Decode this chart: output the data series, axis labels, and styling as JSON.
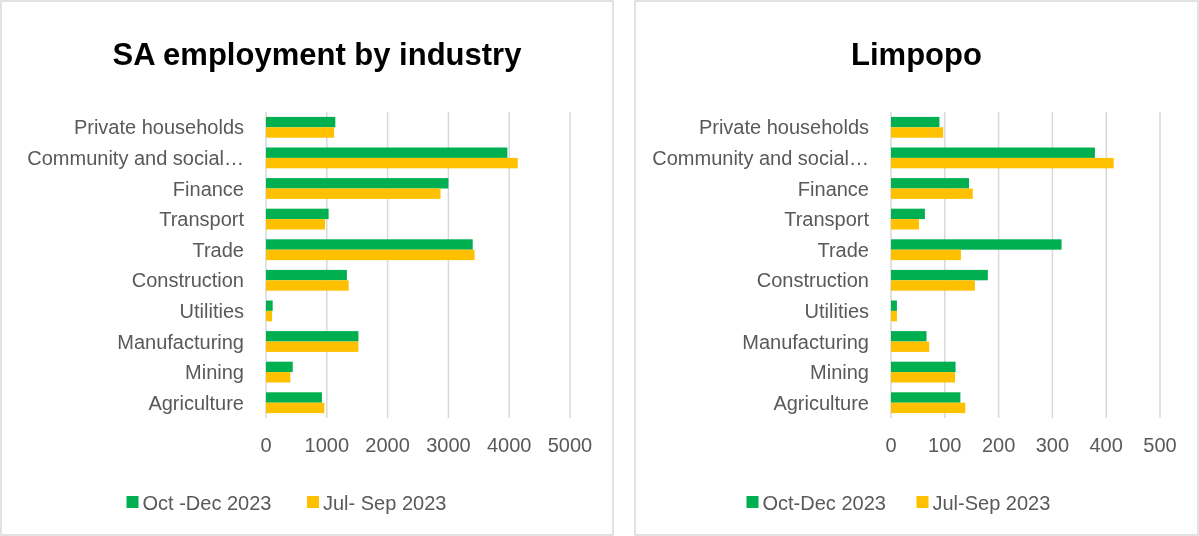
{
  "chart_data": [
    {
      "type": "bar",
      "orientation": "horizontal",
      "title": "SA employment by industry",
      "categories": [
        "Private households",
        "Community and social…",
        "Finance",
        "Transport",
        "Trade",
        "Construction",
        "Utilities",
        "Manufacturing",
        "Mining",
        "Agriculture"
      ],
      "series": [
        {
          "name": "Oct -Dec 2023",
          "color": "#00b050",
          "values": [
            1140,
            3970,
            3000,
            1030,
            3400,
            1330,
            110,
            1520,
            440,
            920
          ]
        },
        {
          "name": "Jul- Sep 2023",
          "color": "#ffc000",
          "values": [
            1120,
            4140,
            2870,
            970,
            3430,
            1360,
            100,
            1520,
            400,
            960
          ]
        }
      ],
      "xlim": [
        0,
        5000
      ],
      "xticks": [
        0,
        1000,
        2000,
        3000,
        4000,
        5000
      ],
      "grid": "x",
      "legend": "bottom"
    },
    {
      "type": "bar",
      "orientation": "horizontal",
      "title": "Limpopo",
      "categories": [
        "Private households",
        "Community and social…",
        "Finance",
        "Transport",
        "Trade",
        "Construction",
        "Utilities",
        "Manufacturing",
        "Mining",
        "Agriculture"
      ],
      "series": [
        {
          "name": "Oct-Dec 2023",
          "color": "#00b050",
          "values": [
            90,
            379,
            145,
            63,
            317,
            180,
            11,
            66,
            120,
            129
          ]
        },
        {
          "name": "Jul-Sep 2023",
          "color": "#ffc000",
          "values": [
            97,
            414,
            152,
            52,
            130,
            156,
            11,
            71,
            119,
            138
          ]
        }
      ],
      "xlim": [
        0,
        500
      ],
      "xticks": [
        0,
        100,
        200,
        300,
        400,
        500
      ],
      "grid": "x",
      "legend": "bottom"
    }
  ]
}
